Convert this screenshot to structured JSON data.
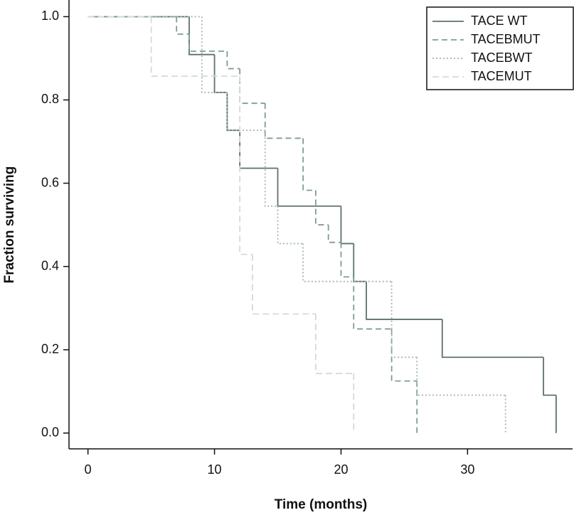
{
  "chart_data": {
    "type": "step",
    "x_label": "Time (months)",
    "y_label": "Fraction surviving",
    "xlim": [
      -1.5,
      38.3
    ],
    "ylim": [
      -0.038,
      1.04
    ],
    "xticks": [
      0,
      10,
      20,
      30
    ],
    "yticks": [
      {
        "value": 0,
        "label": "0.0"
      },
      {
        "value": 0.2,
        "label": "0.2"
      },
      {
        "value": 0.4,
        "label": "0.4"
      },
      {
        "value": 0.6,
        "label": "0.6"
      },
      {
        "value": 0.8,
        "label": "0.8"
      },
      {
        "value": 1,
        "label": "1.0"
      }
    ],
    "legend": "top-right",
    "series": [
      {
        "name": "TACE WT",
        "color": "#5e716d",
        "dash": "none",
        "x": [
          0,
          8,
          10,
          11,
          12,
          15,
          20,
          21,
          22,
          28,
          36,
          37
        ],
        "values": [
          1.0,
          0.909,
          0.818,
          0.727,
          0.636,
          0.545,
          0.455,
          0.364,
          0.273,
          0.182,
          0.091,
          0.0
        ]
      },
      {
        "name": "TACEBMUT",
        "color": "#7f9c96",
        "dash": "8 5",
        "x": [
          0,
          7,
          8,
          11,
          12,
          14,
          17,
          18,
          19,
          20,
          21,
          24,
          26
        ],
        "values": [
          1.0,
          0.958,
          0.917,
          0.875,
          0.792,
          0.708,
          0.583,
          0.5,
          0.458,
          0.375,
          0.25,
          0.125,
          0.0
        ]
      },
      {
        "name": "TACEBWT",
        "color": "#a3b5b1",
        "dash": "2 3",
        "x": [
          0,
          9,
          11,
          14,
          15,
          17,
          24,
          26,
          33
        ],
        "values": [
          1.0,
          0.818,
          0.727,
          0.545,
          0.455,
          0.364,
          0.182,
          0.091,
          0.0
        ]
      },
      {
        "name": "TACEMUT",
        "color": "#d3dbd9",
        "dash": "9 5",
        "x": [
          0,
          5,
          12,
          13,
          18,
          21
        ],
        "values": [
          1.0,
          0.857,
          0.429,
          0.286,
          0.143,
          0.0
        ]
      }
    ]
  }
}
